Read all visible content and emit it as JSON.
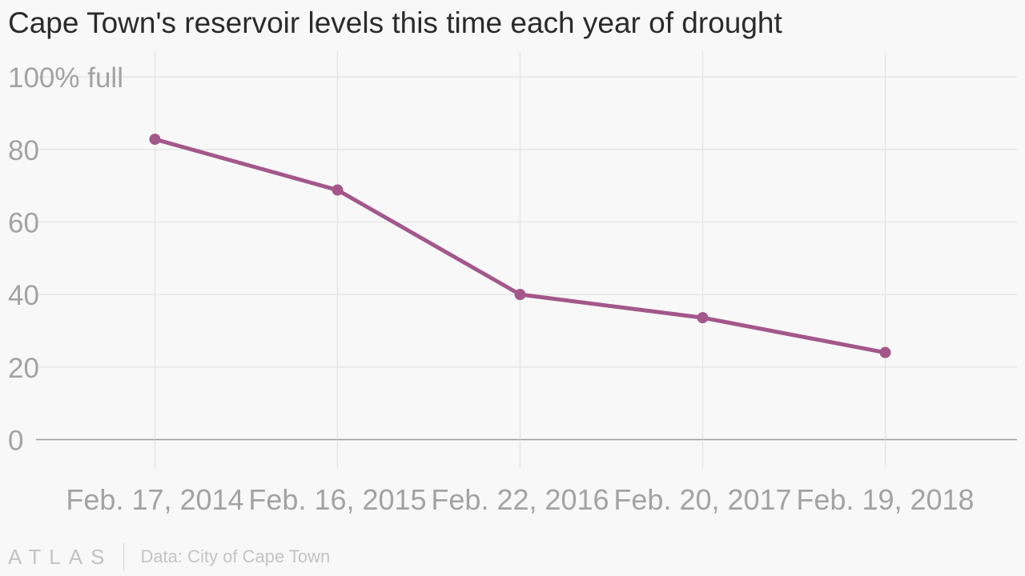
{
  "title": "Cape Town's reservoir levels this time each year of drought",
  "chart_data": {
    "type": "line",
    "title": "Cape Town's reservoir levels this time each year of drought",
    "categories": [
      "Feb. 17, 2014",
      "Feb. 16, 2015",
      "Feb. 22, 2016",
      "Feb. 20, 2017",
      "Feb. 19, 2018"
    ],
    "series": [
      {
        "values": [
          82.8,
          68.8,
          40.0,
          33.6,
          24.0
        ],
        "color": "#a3578a"
      }
    ],
    "y_ticks": [
      0,
      20,
      40,
      60,
      80,
      100
    ],
    "y_tick_labels": [
      "0",
      "20",
      "40",
      "60",
      "80",
      "100% full"
    ],
    "ylim": [
      0,
      100
    ],
    "grid": true,
    "xlabel": "",
    "ylabel": ""
  },
  "footer": {
    "logo": "ATLAS",
    "source": "Data: City of Cape Town"
  }
}
